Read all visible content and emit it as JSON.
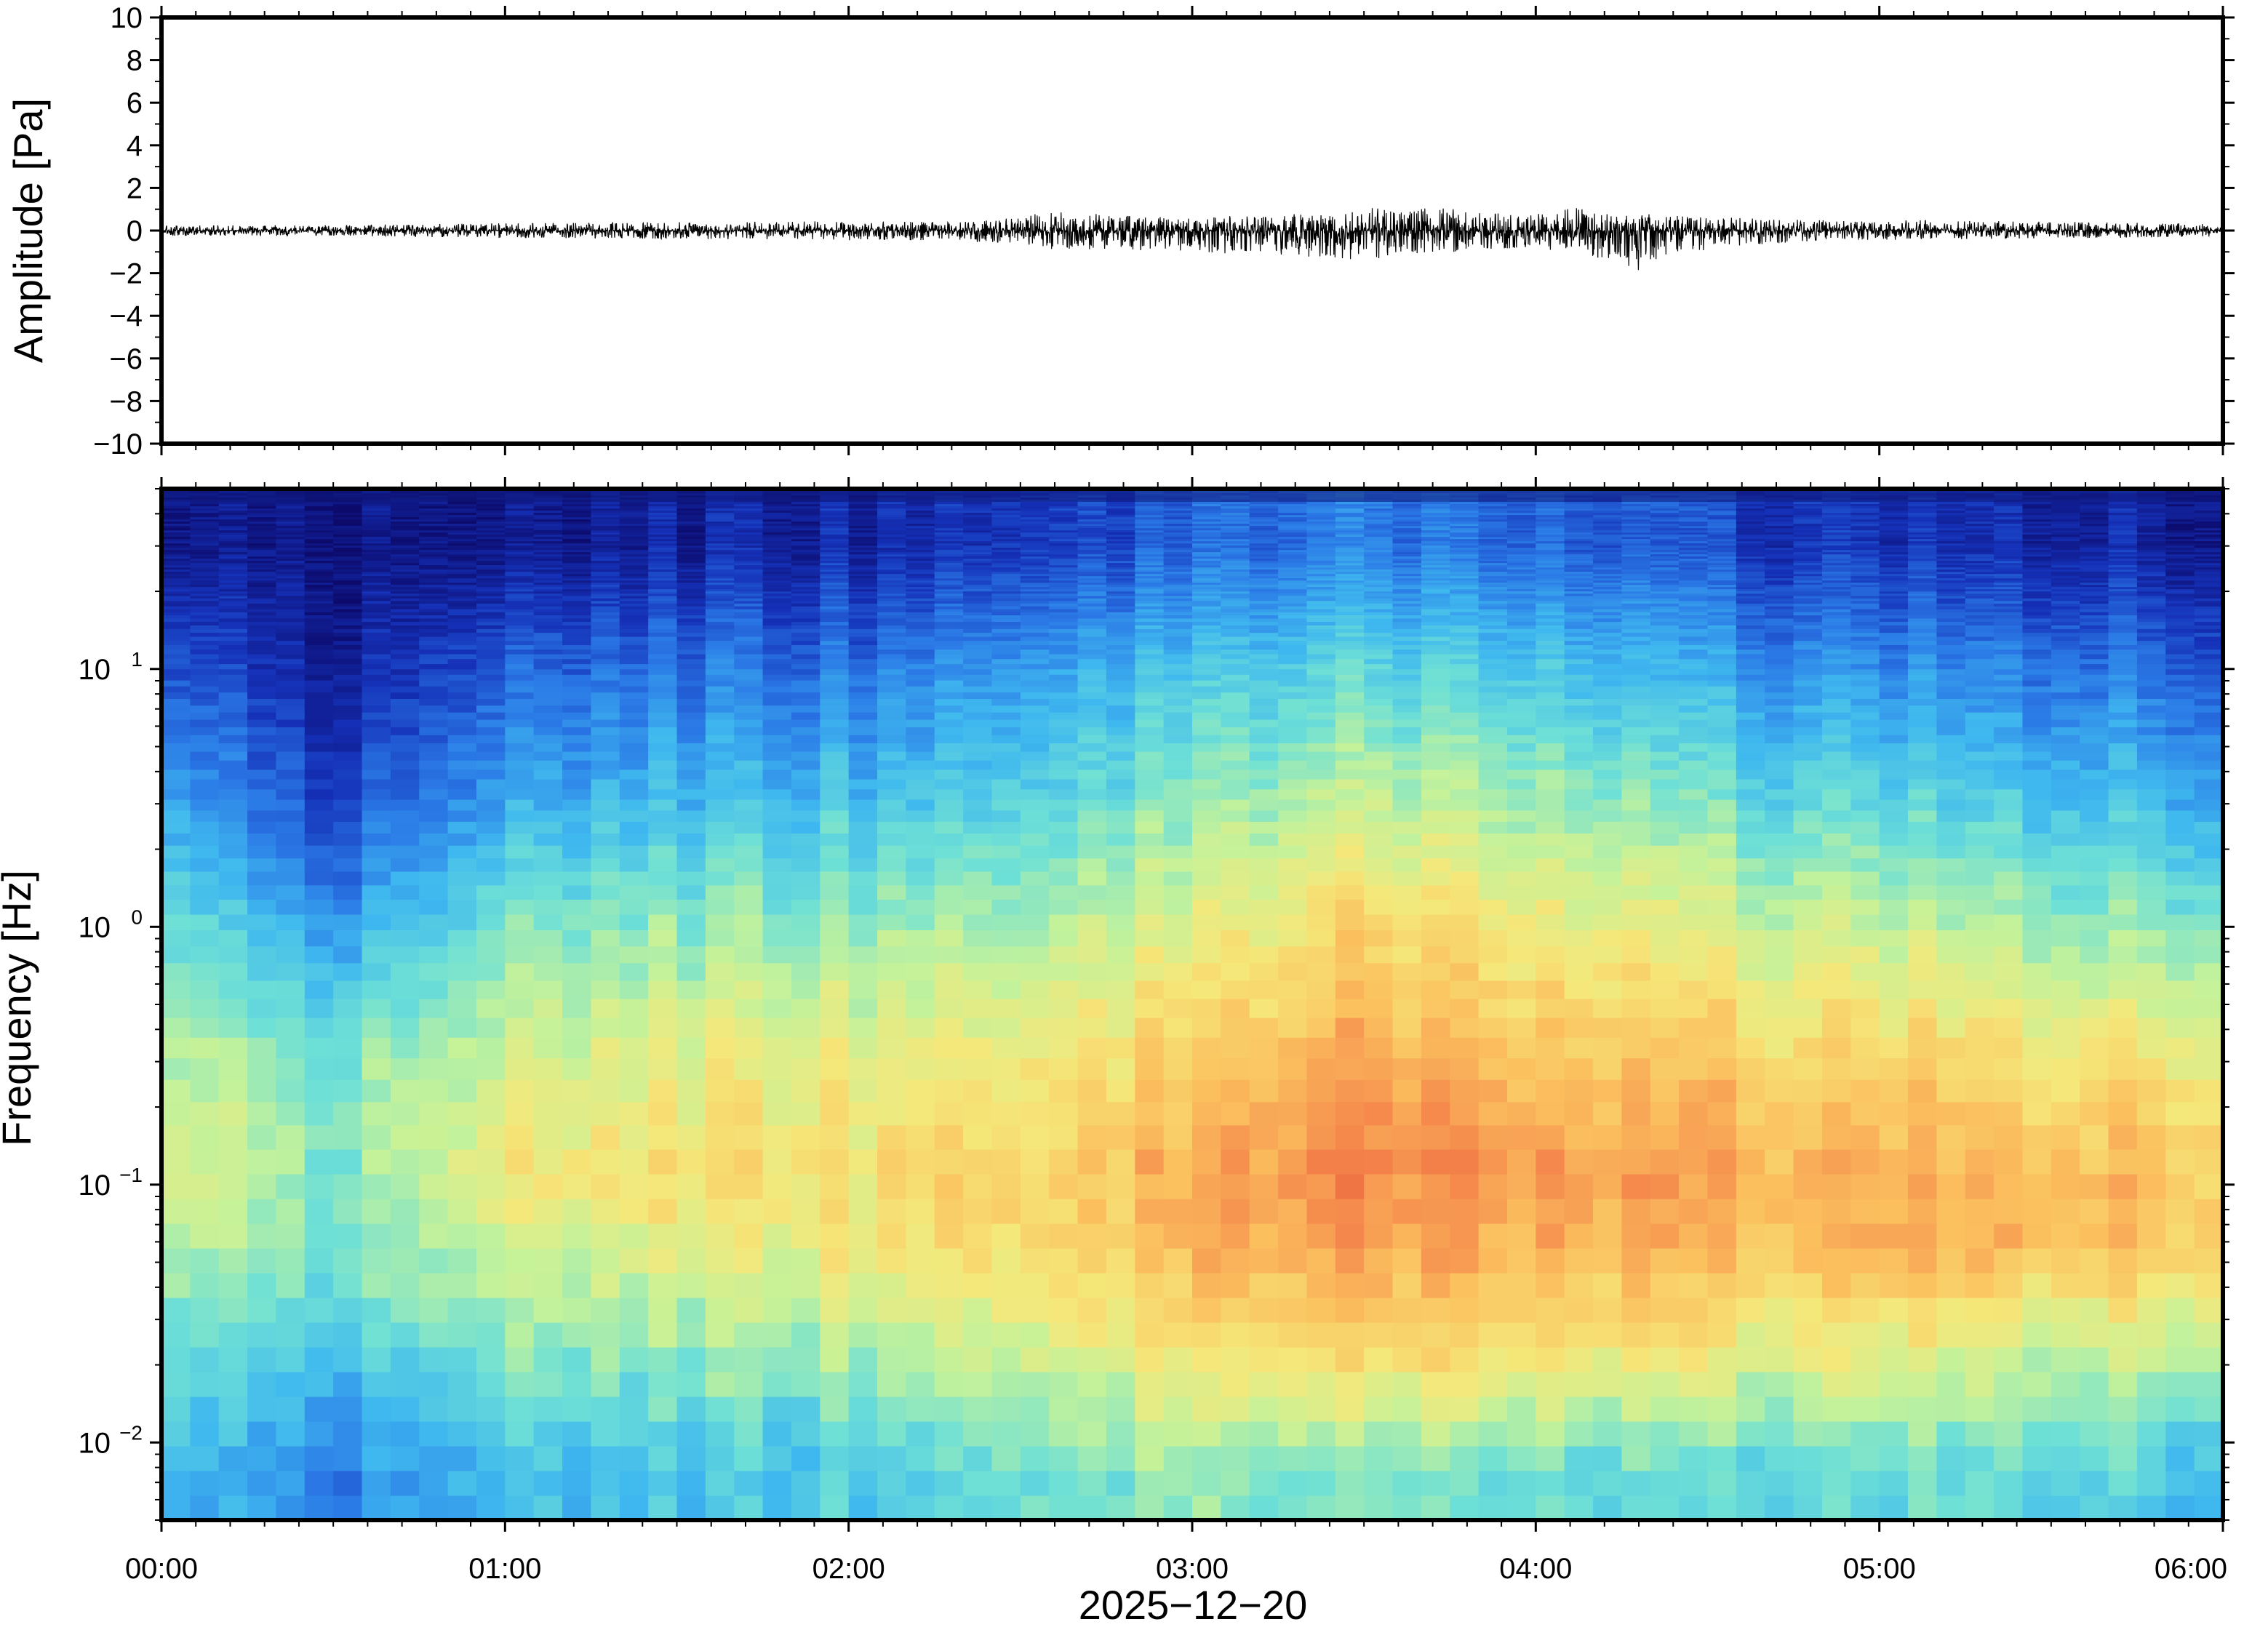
{
  "chart_data": [
    {
      "type": "line",
      "panel": "waveform",
      "ylabel": "Amplitude [Pa]",
      "ylim": [
        -10,
        10
      ],
      "yticks": [
        10,
        8,
        6,
        4,
        2,
        0,
        -2,
        -4,
        -6,
        -8,
        -10
      ],
      "ytick_labels": [
        "10",
        "8",
        "6",
        "4",
        "2",
        "0",
        "−2",
        "−4",
        "−6",
        "−8",
        "−10"
      ],
      "xlim_hours": [
        0,
        6
      ],
      "series": [
        {
          "color": "#000000",
          "envelope": {
            "time_hours": [
              0.0,
              0.5,
              1.0,
              1.5,
              2.0,
              2.3,
              2.5,
              2.6,
              2.8,
              3.0,
              3.2,
              3.4,
              3.5,
              3.6,
              3.75,
              3.9,
              4.0,
              4.1,
              4.2,
              4.3,
              4.4,
              4.6,
              4.8,
              5.0,
              5.3,
              5.6,
              6.0
            ],
            "max_pa": [
              0.25,
              0.25,
              0.35,
              0.4,
              0.45,
              0.4,
              0.6,
              1.0,
              0.7,
              0.6,
              0.8,
              1.0,
              1.2,
              1.0,
              1.1,
              0.8,
              0.8,
              1.2,
              0.9,
              0.8,
              0.7,
              0.6,
              0.5,
              0.5,
              0.45,
              0.4,
              0.35
            ],
            "min_pa": [
              -0.25,
              -0.25,
              -0.35,
              -0.4,
              -0.45,
              -0.5,
              -0.6,
              -0.9,
              -0.9,
              -1.0,
              -1.2,
              -1.3,
              -1.4,
              -1.2,
              -1.1,
              -0.9,
              -0.8,
              -1.1,
              -1.4,
              -2.0,
              -1.1,
              -0.7,
              -0.5,
              -0.45,
              -0.4,
              -0.35,
              -0.3
            ]
          }
        }
      ],
      "grid": false
    },
    {
      "type": "heatmap",
      "panel": "spectrogram",
      "ylabel": "Frequency [Hz]",
      "yscale": "log",
      "ylim": [
        0.005,
        50
      ],
      "yticks": [
        10,
        1,
        0.1,
        0.01
      ],
      "ytick_mantissa": [
        "10",
        "10",
        "10",
        "10"
      ],
      "ytick_exponents": [
        "1",
        "0",
        "−1",
        "−2"
      ],
      "xlabel": "2025−12−20",
      "xlim_hours": [
        0,
        6
      ],
      "xticks_hours": [
        0,
        1,
        2,
        3,
        4,
        5,
        6
      ],
      "xtick_labels": [
        "00:00",
        "01:00",
        "02:00",
        "03:00",
        "04:00",
        "05:00",
        "06:00"
      ],
      "colormap": "jet-like (blue = low power, red = high power)",
      "colormap_stops": [
        "#0c0a6b",
        "#1531b8",
        "#2a78e6",
        "#3fb8ef",
        "#6ee0d6",
        "#c4f29a",
        "#f5e87a",
        "#fbbf5e",
        "#f4834a",
        "#e24a36"
      ],
      "time_hours": [
        0.0,
        0.5,
        1.0,
        1.5,
        2.0,
        2.5,
        3.0,
        3.5,
        4.0,
        4.5,
        5.0,
        5.5,
        6.0
      ],
      "frequency_hz": [
        0.007,
        0.02,
        0.05,
        0.1,
        0.3,
        1,
        3,
        10,
        30
      ],
      "relative_power": [
        [
          0.35,
          0.45,
          0.55,
          0.65,
          0.55,
          0.45,
          0.32,
          0.18,
          0.05
        ],
        [
          0.22,
          0.35,
          0.45,
          0.45,
          0.45,
          0.25,
          0.12,
          0.05,
          0.02
        ],
        [
          0.38,
          0.5,
          0.6,
          0.68,
          0.6,
          0.48,
          0.32,
          0.2,
          0.06
        ],
        [
          0.36,
          0.5,
          0.62,
          0.7,
          0.62,
          0.5,
          0.35,
          0.22,
          0.08
        ],
        [
          0.38,
          0.52,
          0.65,
          0.7,
          0.62,
          0.5,
          0.36,
          0.22,
          0.08
        ],
        [
          0.45,
          0.58,
          0.7,
          0.72,
          0.65,
          0.52,
          0.4,
          0.28,
          0.12
        ],
        [
          0.48,
          0.66,
          0.78,
          0.8,
          0.72,
          0.6,
          0.48,
          0.35,
          0.18
        ],
        [
          0.46,
          0.7,
          0.82,
          0.88,
          0.8,
          0.7,
          0.55,
          0.4,
          0.22
        ],
        [
          0.45,
          0.68,
          0.8,
          0.85,
          0.76,
          0.65,
          0.52,
          0.38,
          0.2
        ],
        [
          0.42,
          0.64,
          0.78,
          0.82,
          0.74,
          0.6,
          0.45,
          0.3,
          0.15
        ],
        [
          0.42,
          0.62,
          0.8,
          0.8,
          0.7,
          0.55,
          0.4,
          0.25,
          0.1
        ],
        [
          0.4,
          0.58,
          0.76,
          0.78,
          0.68,
          0.5,
          0.36,
          0.22,
          0.08
        ],
        [
          0.38,
          0.56,
          0.74,
          0.76,
          0.66,
          0.48,
          0.33,
          0.2,
          0.07
        ]
      ],
      "grid": false
    }
  ]
}
